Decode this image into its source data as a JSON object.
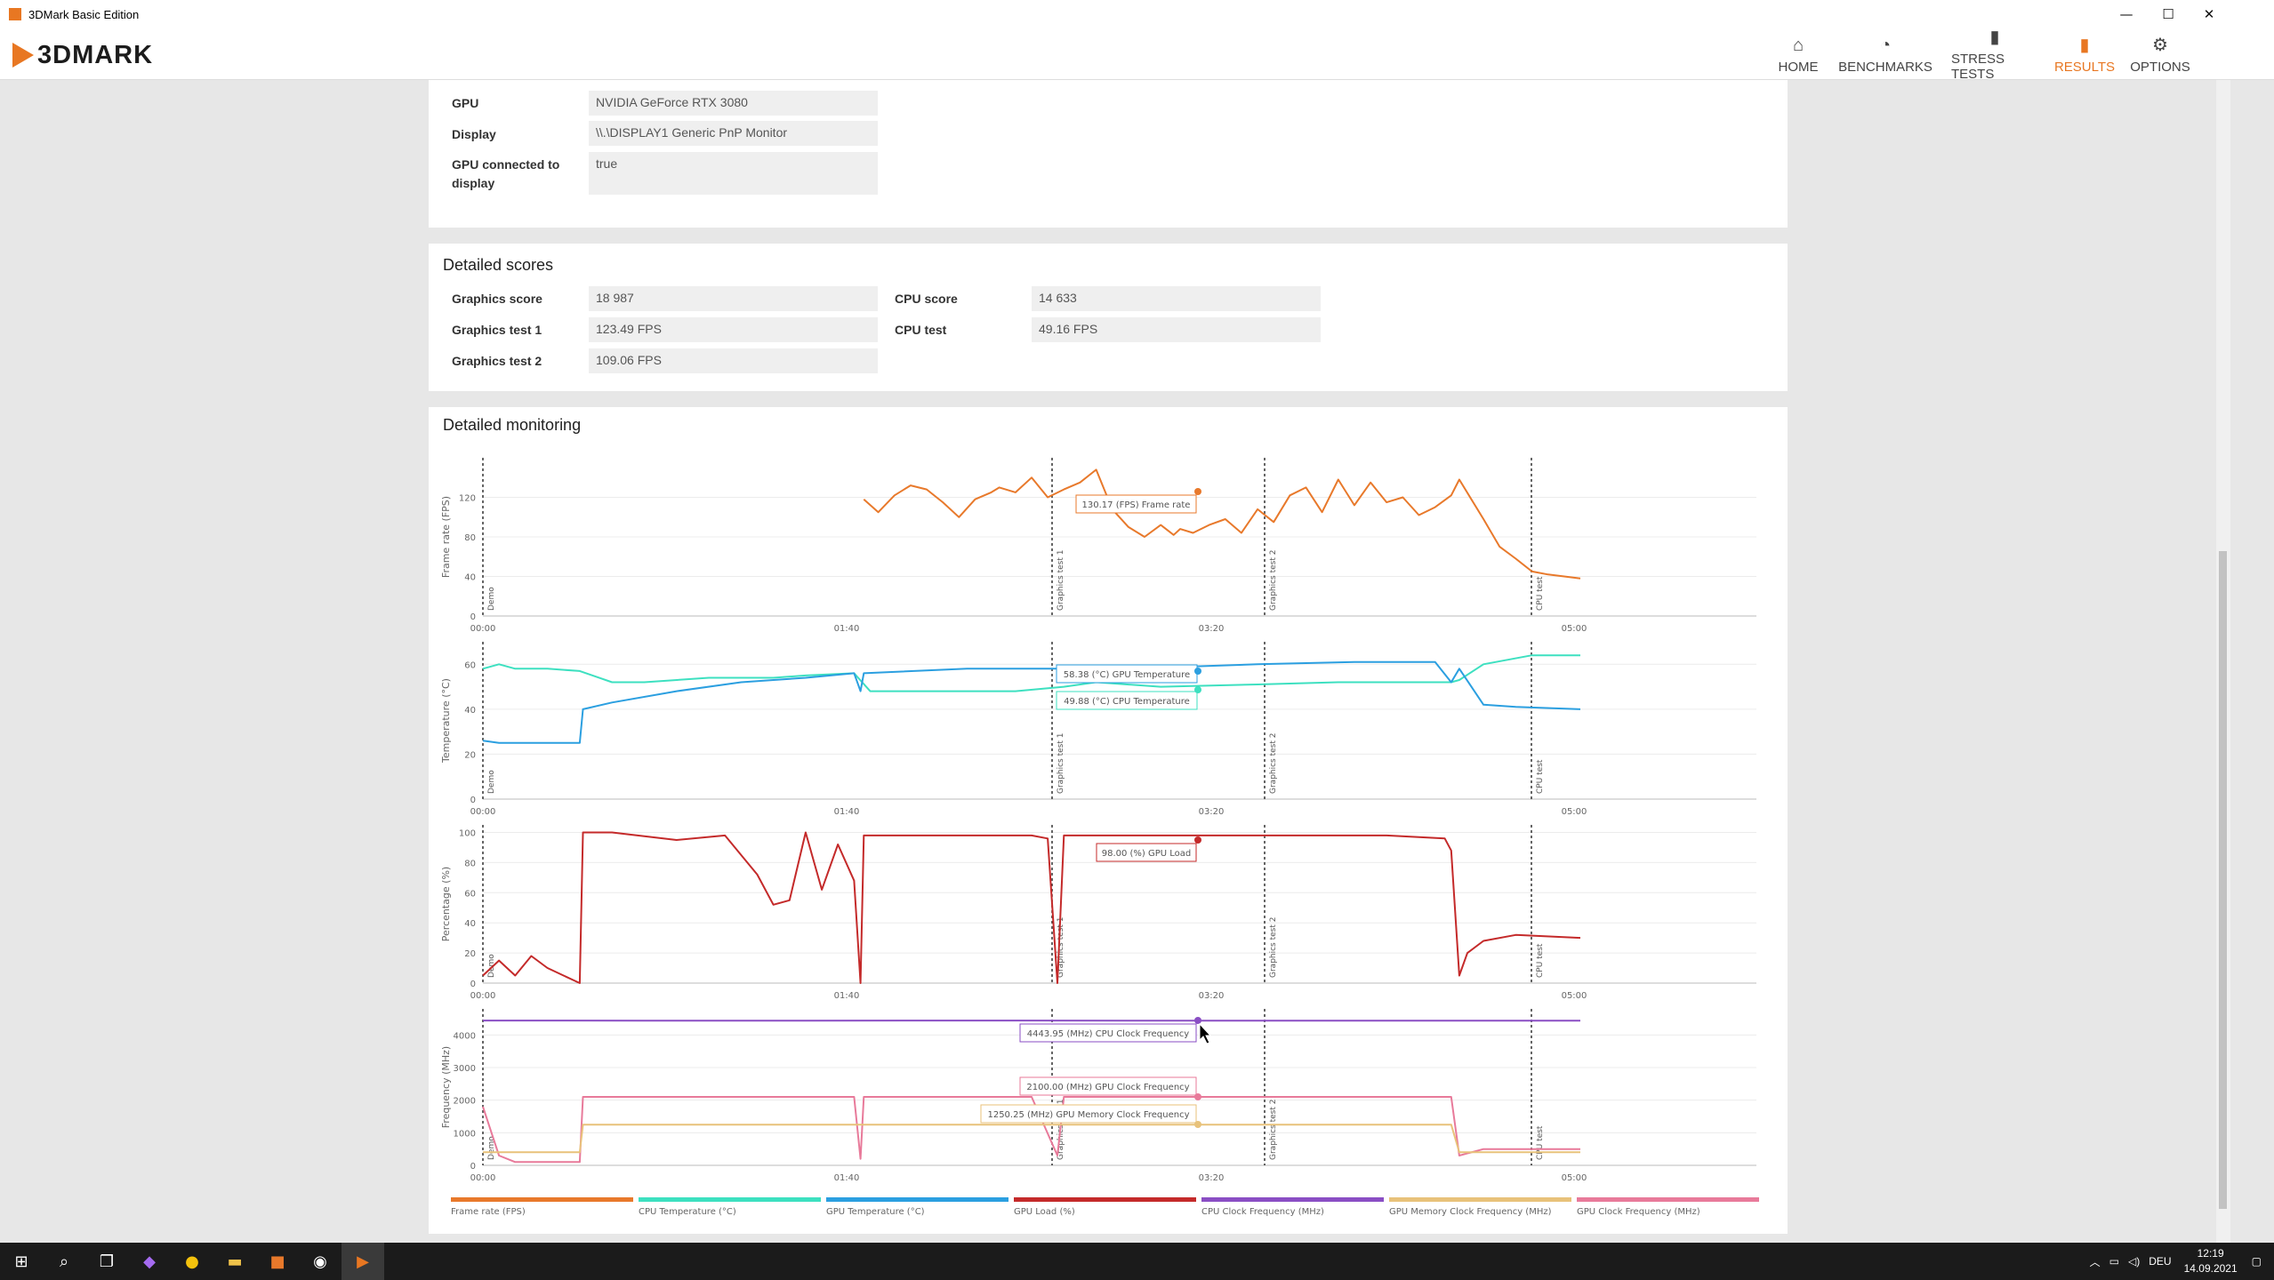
{
  "window": {
    "title": "3DMark Basic Edition"
  },
  "header": {
    "logo_text": "3DMARK",
    "nav": [
      {
        "label": "HOME",
        "icon": "home-icon",
        "glyph": "⌂"
      },
      {
        "label": "BENCHMARKS",
        "icon": "gauge-icon",
        "glyph": "◔"
      },
      {
        "label": "STRESS TESTS",
        "icon": "bar-chart-icon",
        "glyph": "▮"
      },
      {
        "label": "RESULTS",
        "icon": "results-icon",
        "glyph": "▮"
      },
      {
        "label": "OPTIONS",
        "icon": "gear-icon",
        "glyph": "⚙"
      }
    ],
    "active": "RESULTS",
    "accent_color": "#e87722"
  },
  "system_info": {
    "rows": [
      {
        "label": "GPU",
        "value": "NVIDIA GeForce RTX 3080"
      },
      {
        "label": "Display",
        "value": "\\\\.\\DISPLAY1 Generic PnP Monitor"
      },
      {
        "label": "GPU connected to display",
        "value": "true"
      }
    ]
  },
  "detailed_scores": {
    "title": "Detailed scores",
    "left": [
      {
        "label": "Graphics score",
        "value": "18 987"
      },
      {
        "label": "Graphics test 1",
        "value": "123.49 FPS"
      },
      {
        "label": "Graphics test 2",
        "value": "109.06 FPS"
      }
    ],
    "right": [
      {
        "label": "CPU score",
        "value": "14 633"
      },
      {
        "label": "CPU test",
        "value": "49.16 FPS"
      }
    ]
  },
  "monitoring": {
    "title": "Detailed monitoring",
    "x_ticks": [
      "00:00",
      "01:40",
      "03:20",
      "05:00"
    ],
    "markers": [
      "Demo",
      "Graphics test 1",
      "Graphics test 2",
      "CPU test"
    ],
    "legend": [
      {
        "label": "Frame rate (FPS)",
        "color": "#e8792b"
      },
      {
        "label": "CPU Temperature (°C)",
        "color": "#3de0c0"
      },
      {
        "label": "GPU Temperature (°C)",
        "color": "#2b9fe0"
      },
      {
        "label": "GPU Load (%)",
        "color": "#c42a2a"
      },
      {
        "label": "CPU Clock Frequency (MHz)",
        "color": "#8a4ec4"
      },
      {
        "label": "GPU Memory Clock Frequency (MHz)",
        "color": "#e8c27a"
      },
      {
        "label": "GPU Clock Frequency (MHz)",
        "color": "#e87a9a"
      }
    ],
    "tooltips": {
      "frame_rate": "130.17 (FPS) Frame rate",
      "gpu_temp": "58.38 (°C) GPU Temperature",
      "cpu_temp": "49.88 (°C) CPU Temperature",
      "gpu_load": "98.00 (%) GPU Load",
      "cpu_clock": "4443.95 (MHz) CPU Clock Frequency",
      "gpu_clock": "2100.00 (MHz) GPU Clock Frequency",
      "gpu_mem_clock": "1250.25 (MHz) GPU Memory Clock Frequency"
    }
  },
  "chart_data": [
    {
      "type": "line",
      "ylabel": "Frame rate (FPS)",
      "ylim": [
        0,
        160
      ],
      "yticks": [
        0,
        40,
        80,
        120
      ],
      "series": [
        {
          "name": "Frame rate (FPS)",
          "color": "#e8792b",
          "x": [
            236,
            245,
            255,
            265,
            275,
            285,
            295,
            305,
            315,
            320,
            330,
            340,
            350,
            360,
            370,
            380,
            390,
            400,
            410,
            420,
            428,
            432,
            440,
            450,
            460,
            470,
            480,
            490,
            500,
            510,
            520,
            530,
            540,
            550,
            560,
            570,
            580,
            590,
            600,
            605,
            620,
            630,
            640,
            650,
            660,
            670,
            680
          ],
          "y": [
            118,
            105,
            122,
            132,
            128,
            115,
            100,
            118,
            125,
            130,
            125,
            140,
            120,
            128,
            135,
            148,
            108,
            90,
            80,
            92,
            82,
            88,
            84,
            92,
            98,
            84,
            108,
            95,
            122,
            130,
            105,
            138,
            112,
            135,
            115,
            120,
            102,
            110,
            122,
            138,
            98,
            70,
            58,
            45,
            42,
            40,
            38
          ]
        }
      ]
    },
    {
      "type": "line",
      "ylabel": "Temperature (°C)",
      "ylim": [
        0,
        70
      ],
      "yticks": [
        0,
        20,
        40,
        60
      ],
      "series": [
        {
          "name": "CPU Temperature (°C)",
          "color": "#3de0c0",
          "x": [
            0,
            10,
            20,
            40,
            60,
            80,
            100,
            140,
            180,
            200,
            230,
            240,
            270,
            300,
            330,
            360,
            380,
            420,
            480,
            530,
            560,
            590,
            600,
            605,
            620,
            650,
            680
          ],
          "y": [
            58,
            60,
            58,
            58,
            57,
            52,
            52,
            54,
            54,
            55,
            56,
            48,
            48,
            48,
            48,
            50,
            52,
            50,
            51,
            52,
            52,
            52,
            52,
            53,
            60,
            64,
            64
          ]
        },
        {
          "name": "GPU Temperature (°C)",
          "color": "#2b9fe0",
          "x": [
            0,
            10,
            40,
            60,
            62,
            80,
            120,
            160,
            200,
            230,
            234,
            236,
            300,
            340,
            380,
            400,
            440,
            480,
            540,
            590,
            600,
            605,
            620,
            640,
            680
          ],
          "y": [
            26,
            25,
            25,
            25,
            40,
            43,
            48,
            52,
            54,
            56,
            48,
            56,
            58,
            58,
            58,
            58,
            59,
            60,
            61,
            61,
            52,
            58,
            42,
            41,
            40
          ]
        }
      ]
    },
    {
      "type": "line",
      "ylabel": "Percentage (%)",
      "ylim": [
        0,
        105
      ],
      "yticks": [
        0,
        20,
        40,
        60,
        80,
        100
      ],
      "series": [
        {
          "name": "GPU Load (%)",
          "color": "#c42a2a",
          "x": [
            0,
            10,
            20,
            30,
            40,
            50,
            60,
            62,
            80,
            120,
            150,
            170,
            180,
            190,
            200,
            210,
            220,
            230,
            234,
            236,
            300,
            340,
            350,
            356,
            360,
            420,
            480,
            560,
            596,
            600,
            605,
            610,
            620,
            640,
            680
          ],
          "y": [
            5,
            15,
            5,
            18,
            10,
            5,
            0,
            100,
            100,
            95,
            98,
            72,
            52,
            55,
            100,
            62,
            92,
            68,
            0,
            98,
            98,
            98,
            96,
            0,
            98,
            98,
            98,
            98,
            96,
            88,
            5,
            20,
            28,
            32,
            30
          ]
        }
      ]
    },
    {
      "type": "line",
      "ylabel": "Frequency (MHz)",
      "ylim": [
        0,
        4800
      ],
      "yticks": [
        0,
        1000,
        2000,
        3000,
        4000
      ],
      "series": [
        {
          "name": "CPU Clock Frequency (MHz)",
          "color": "#8a4ec4",
          "x": [
            0,
            100,
            200,
            300,
            400,
            500,
            600,
            680
          ],
          "y": [
            4443,
            4440,
            4440,
            4443,
            4440,
            4440,
            4440,
            4440
          ]
        },
        {
          "name": "GPU Clock Frequency (MHz)",
          "color": "#e87a9a",
          "x": [
            0,
            10,
            20,
            60,
            62,
            100,
            230,
            234,
            236,
            340,
            356,
            360,
            600,
            605,
            620,
            640,
            680
          ],
          "y": [
            1800,
            300,
            100,
            100,
            2100,
            2100,
            2100,
            200,
            2100,
            2100,
            300,
            2100,
            2100,
            300,
            500,
            500,
            500
          ]
        },
        {
          "name": "GPU Memory Clock Frequency (MHz)",
          "color": "#e8c27a",
          "x": [
            0,
            10,
            60,
            62,
            600,
            605,
            620,
            640,
            680
          ],
          "y": [
            405,
            405,
            405,
            1250,
            1250,
            405,
            405,
            405,
            405
          ]
        }
      ]
    }
  ]
}
